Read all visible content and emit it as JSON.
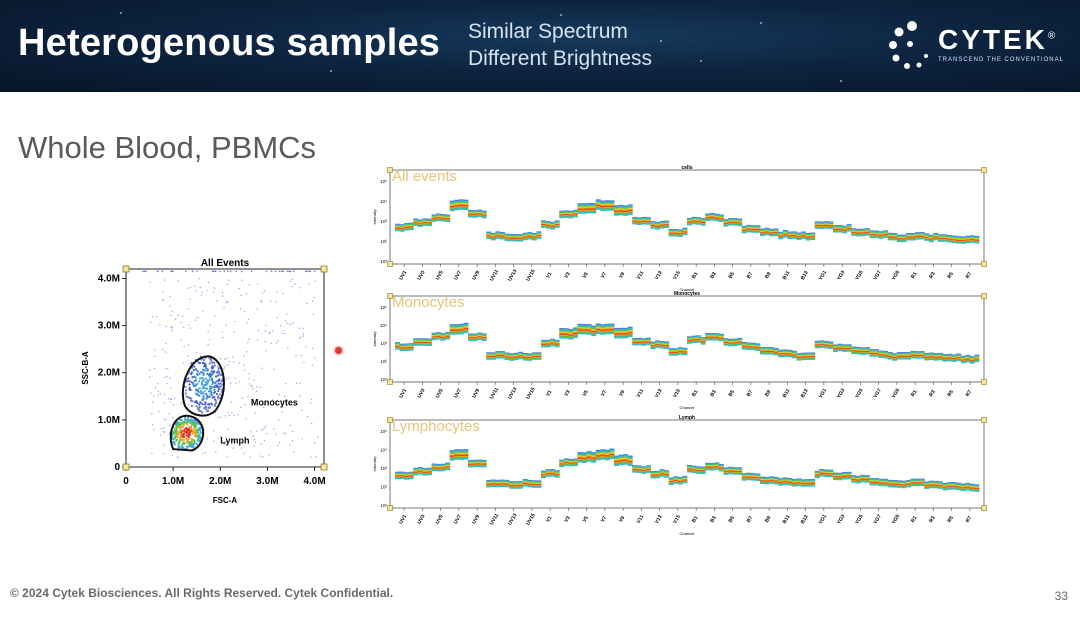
{
  "header": {
    "title": "Heterogenous samples",
    "subtitle_line1": "Similar Spectrum",
    "subtitle_line2": "Different Brightness",
    "logo_word": "CYTEK",
    "logo_tagline": "TRANSCEND THE CONVENTIONAL",
    "logo_mark": "®"
  },
  "heading": "Whole Blood, PBMCs",
  "footer": "© 2024 Cytek Biosciences. All Rights Reserved. Cytek Confidential.",
  "page_number": "33",
  "colors": {
    "banner": "#0d2440",
    "panel_label": "#e9c377",
    "gate": "#111111",
    "scatter_dot": "#3b5bdb"
  },
  "chart_data": [
    {
      "type": "scatter",
      "title": "All Events",
      "xlabel": "FSC-A",
      "ylabel": "SSC-B-A",
      "xlim": [
        0,
        4.2
      ],
      "ylim": [
        0,
        4.2
      ],
      "x_ticks": [
        "0",
        "1.0M",
        "2.0M",
        "3.0M",
        "4.0M"
      ],
      "y_ticks": [
        "0",
        "1.0M",
        "2.0M",
        "3.0M",
        "4.0M"
      ],
      "populations": [
        {
          "name": "Lymph",
          "center": [
            1.25,
            0.7
          ],
          "label": "Lymph"
        },
        {
          "name": "Monocytes",
          "center": [
            1.6,
            1.75
          ],
          "label": "Monocytes"
        }
      ]
    },
    {
      "type": "heatmap",
      "title": "cells",
      "label": "All events",
      "ylabel": "Intensity",
      "xlabel": "Channel",
      "channels": [
        "UV1",
        "UV3",
        "UV5",
        "UV7",
        "UV9",
        "UV11",
        "UV13",
        "UV15",
        "V1",
        "V3",
        "V5",
        "V7",
        "V9",
        "V11",
        "V13",
        "V15",
        "B1",
        "B3",
        "B5",
        "B7",
        "B9",
        "B11",
        "B13",
        "YG1",
        "YG3",
        "YG5",
        "YG7",
        "YG9",
        "R1",
        "R3",
        "R5",
        "R7"
      ],
      "levels": [
        0.42,
        0.48,
        0.55,
        0.72,
        0.6,
        0.3,
        0.28,
        0.3,
        0.45,
        0.6,
        0.68,
        0.72,
        0.65,
        0.5,
        0.45,
        0.35,
        0.5,
        0.55,
        0.48,
        0.4,
        0.35,
        0.32,
        0.3,
        0.45,
        0.4,
        0.35,
        0.32,
        0.28,
        0.3,
        0.28,
        0.26,
        0.25
      ]
    },
    {
      "type": "heatmap",
      "title": "Monocytes",
      "label": "Monocytes",
      "ylabel": "Intensity",
      "xlabel": "Channel",
      "channels": [
        "UV1",
        "UV3",
        "UV5",
        "UV7",
        "UV9",
        "UV11",
        "UV13",
        "UV15",
        "V1",
        "V3",
        "V5",
        "V7",
        "V9",
        "V11",
        "V13",
        "V15",
        "B1",
        "B3",
        "B5",
        "B7",
        "B9",
        "B11",
        "B13",
        "YG1",
        "YG3",
        "YG5",
        "YG7",
        "YG9",
        "R1",
        "R3",
        "R5",
        "R7"
      ],
      "levels": [
        0.45,
        0.52,
        0.6,
        0.72,
        0.6,
        0.32,
        0.3,
        0.3,
        0.5,
        0.65,
        0.7,
        0.72,
        0.66,
        0.52,
        0.48,
        0.38,
        0.55,
        0.6,
        0.52,
        0.45,
        0.38,
        0.34,
        0.3,
        0.48,
        0.44,
        0.38,
        0.34,
        0.3,
        0.32,
        0.3,
        0.28,
        0.26
      ]
    },
    {
      "type": "heatmap",
      "title": "Lymph",
      "label": "Lymphocytes",
      "ylabel": "Intensity",
      "xlabel": "Channel",
      "channels": [
        "UV1",
        "UV3",
        "UV5",
        "UV7",
        "UV9",
        "UV11",
        "UV13",
        "UV15",
        "V1",
        "V3",
        "V5",
        "V7",
        "V9",
        "V11",
        "V13",
        "V15",
        "B1",
        "B3",
        "B5",
        "B7",
        "B9",
        "B11",
        "B13",
        "YG1",
        "YG3",
        "YG5",
        "YG7",
        "YG9",
        "R1",
        "R3",
        "R5",
        "R7"
      ],
      "levels": [
        0.4,
        0.46,
        0.52,
        0.7,
        0.58,
        0.28,
        0.26,
        0.28,
        0.42,
        0.58,
        0.66,
        0.7,
        0.62,
        0.48,
        0.42,
        0.32,
        0.48,
        0.52,
        0.46,
        0.38,
        0.32,
        0.3,
        0.28,
        0.42,
        0.38,
        0.34,
        0.3,
        0.26,
        0.28,
        0.26,
        0.24,
        0.22
      ]
    }
  ]
}
